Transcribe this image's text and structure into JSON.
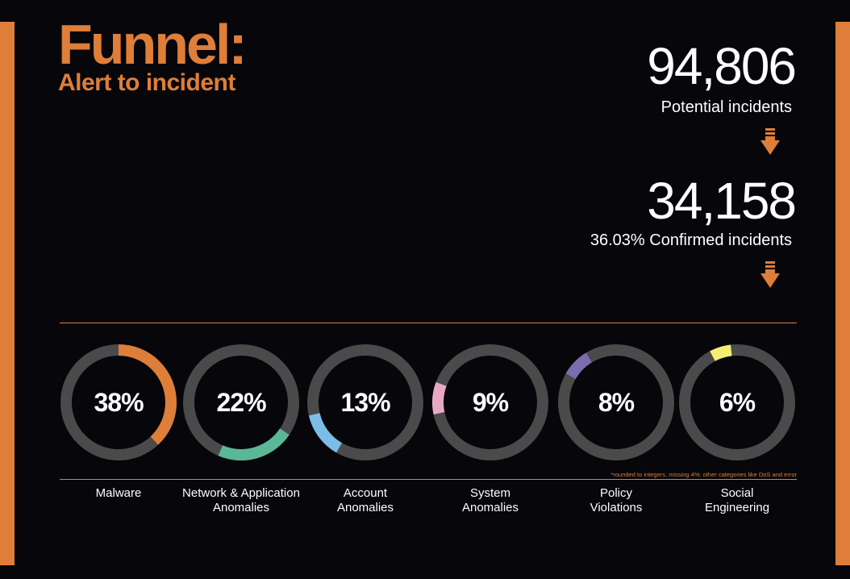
{
  "header": {
    "title": "Funnel:",
    "subtitle": "Alert to incident"
  },
  "funnel": {
    "potential_value": "94,806",
    "potential_label": "Potential incidents",
    "confirmed_value": "34,158",
    "confirmed_label": "36.03% Confirmed incidents"
  },
  "footnote": "*rounded to integers, missing 4%: other categories like DoS and error",
  "colors": {
    "accent": "#de7e38",
    "background": "#06060b",
    "track": "#4a4a4a"
  },
  "chart_data": {
    "type": "donut",
    "unit": "%",
    "series": [
      {
        "label_lines": [
          "Malware"
        ],
        "value": 38,
        "display": "38%",
        "color": "#de7e38",
        "start_deg": 0
      },
      {
        "label_lines": [
          "Network & Application",
          "Anomalies"
        ],
        "value": 22,
        "display": "22%",
        "color": "#5ab897",
        "start_deg": 124
      },
      {
        "label_lines": [
          "Account",
          "Anomalies"
        ],
        "value": 13,
        "display": "13%",
        "color": "#7bbde6",
        "start_deg": 210
      },
      {
        "label_lines": [
          "System",
          "Anomalies"
        ],
        "value": 9,
        "display": "9%",
        "color": "#e8a8c4",
        "start_deg": 258
      },
      {
        "label_lines": [
          "Policy",
          "Violations"
        ],
        "value": 8,
        "display": "8%",
        "color": "#7b6cb0",
        "start_deg": 300
      },
      {
        "label_lines": [
          "Social",
          "Engineering"
        ],
        "value": 6,
        "display": "6%",
        "color": "#f4ee72",
        "start_deg": 332
      }
    ]
  }
}
